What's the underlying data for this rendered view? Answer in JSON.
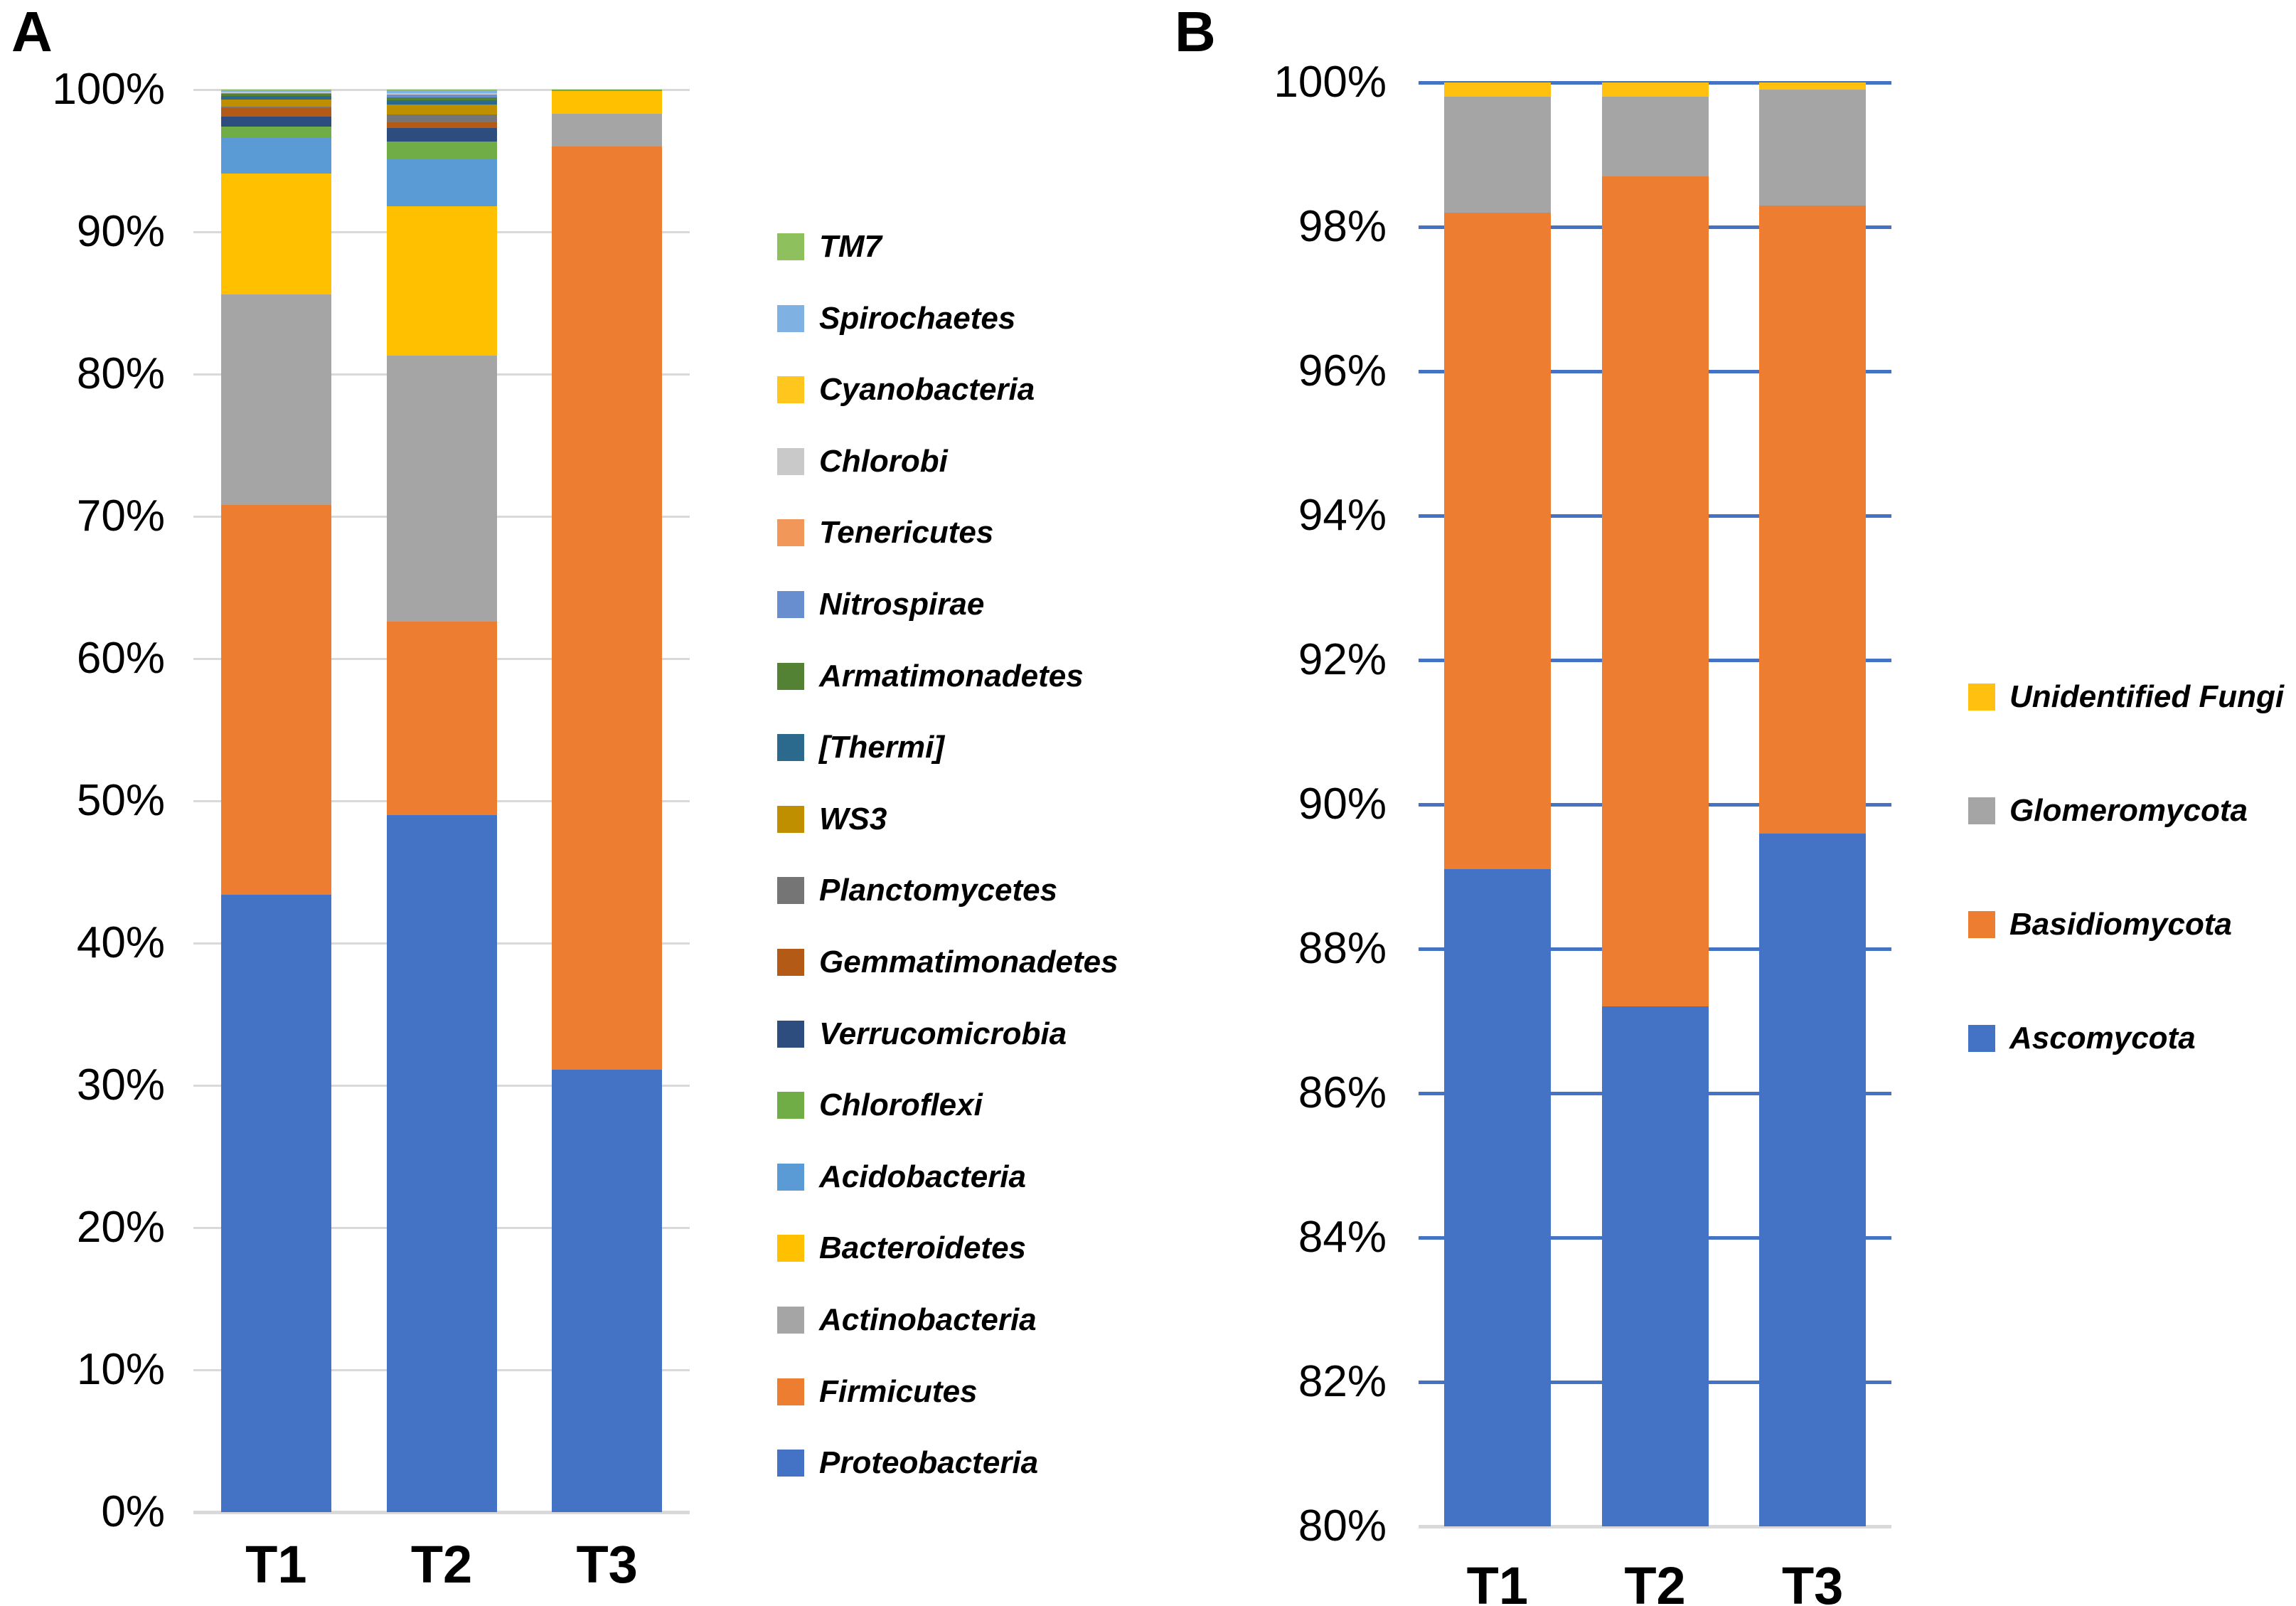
{
  "figure": {
    "background": "#FFFFFF",
    "panel_a_letter": "A",
    "panel_b_letter": "B"
  },
  "chart_data": [
    {
      "type": "bar",
      "stacked": true,
      "panel_label": "A",
      "title": "",
      "xlabel": "",
      "ylabel": "",
      "categories": [
        "T1",
        "T2",
        "T3"
      ],
      "ylim": [
        0,
        100
      ],
      "ytick_values": [
        0,
        10,
        20,
        30,
        40,
        50,
        60,
        70,
        80,
        90,
        100
      ],
      "ytick_labels": [
        "0%",
        "10%",
        "20%",
        "30%",
        "40%",
        "50%",
        "60%",
        "70%",
        "80%",
        "90%",
        "100%"
      ],
      "gridlines": true,
      "gridline_color": "#D9D9D9",
      "axis_line_color": "#D9D9D9",
      "legend_position": "right",
      "legend_reversed": true,
      "series": [
        {
          "name": "Proteobacteria",
          "color": "#4472C4",
          "values": [
            43.4,
            49.0,
            31.1
          ]
        },
        {
          "name": "Firmicutes",
          "color": "#ED7D31",
          "values": [
            27.4,
            13.6,
            64.9
          ]
        },
        {
          "name": "Actinobacteria",
          "color": "#A5A5A5",
          "values": [
            14.8,
            18.7,
            2.3
          ]
        },
        {
          "name": "Bacteroidetes",
          "color": "#FFC000",
          "values": [
            8.5,
            10.5,
            1.6
          ]
        },
        {
          "name": "Acidobacteria",
          "color": "#5B9BD5",
          "values": [
            2.5,
            3.3,
            0.05
          ]
        },
        {
          "name": "Chloroflexi",
          "color": "#70AD47",
          "values": [
            0.8,
            1.25,
            0.05
          ]
        },
        {
          "name": "Verrucomicrobia",
          "color": "#2E4D7F",
          "values": [
            0.7,
            0.95,
            0
          ]
        },
        {
          "name": "Gemmatimonadetes",
          "color": "#B45A17",
          "values": [
            0.6,
            0.38,
            0
          ]
        },
        {
          "name": "Planctomycetes",
          "color": "#757575",
          "values": [
            0.1,
            0.58,
            0
          ]
        },
        {
          "name": "WS3",
          "color": "#BF8F00",
          "values": [
            0.5,
            0.67,
            0
          ]
        },
        {
          "name": "[Thermi]",
          "color": "#2B6A8C",
          "values": [
            0.25,
            0.33,
            0
          ]
        },
        {
          "name": "Armatimonadetes",
          "color": "#548235",
          "values": [
            0.15,
            0.2,
            0
          ]
        },
        {
          "name": "Nitrospirae",
          "color": "#698ED0",
          "values": [
            0.05,
            0.2,
            0
          ]
        },
        {
          "name": "Tenericutes",
          "color": "#F1975A",
          "values": [
            0.03,
            0.02,
            0
          ]
        },
        {
          "name": "Chlorobi",
          "color": "#C9C9C9",
          "values": [
            0.02,
            0.02,
            0
          ]
        },
        {
          "name": "Cyanobacteria",
          "color": "#FFC61E",
          "values": [
            0.05,
            0.05,
            0
          ]
        },
        {
          "name": "Spirochaetes",
          "color": "#7FB2E3",
          "values": [
            0.1,
            0.15,
            0
          ]
        },
        {
          "name": "TM7",
          "color": "#8EC05E",
          "values": [
            0.05,
            0.1,
            0
          ]
        }
      ]
    },
    {
      "type": "bar",
      "stacked": true,
      "panel_label": "B",
      "title": "",
      "xlabel": "",
      "ylabel": "",
      "categories": [
        "T1",
        "T2",
        "T3"
      ],
      "ylim": [
        80,
        100
      ],
      "ytick_values": [
        80,
        82,
        84,
        86,
        88,
        90,
        92,
        94,
        96,
        98,
        100
      ],
      "ytick_labels": [
        "80%",
        "82%",
        "84%",
        "86%",
        "88%",
        "90%",
        "92%",
        "94%",
        "96%",
        "98%",
        "100%"
      ],
      "gridlines": true,
      "gridline_color": "#4472C4",
      "axis_line_color": "#D9D9D9",
      "legend_position": "right",
      "legend_reversed": true,
      "series": [
        {
          "name": "Ascomycota",
          "color": "#4472C4",
          "values": [
            89.1,
            87.2,
            89.6
          ]
        },
        {
          "name": "Basidiomycota",
          "color": "#ED7D31",
          "values": [
            9.1,
            11.5,
            8.7
          ]
        },
        {
          "name": "Glomeromycota",
          "color": "#A5A5A5",
          "values": [
            1.6,
            1.1,
            1.6
          ]
        },
        {
          "name": "Unidentified Fungi",
          "color": "#FFC010",
          "values": [
            0.2,
            0.2,
            0.1
          ]
        }
      ]
    }
  ]
}
